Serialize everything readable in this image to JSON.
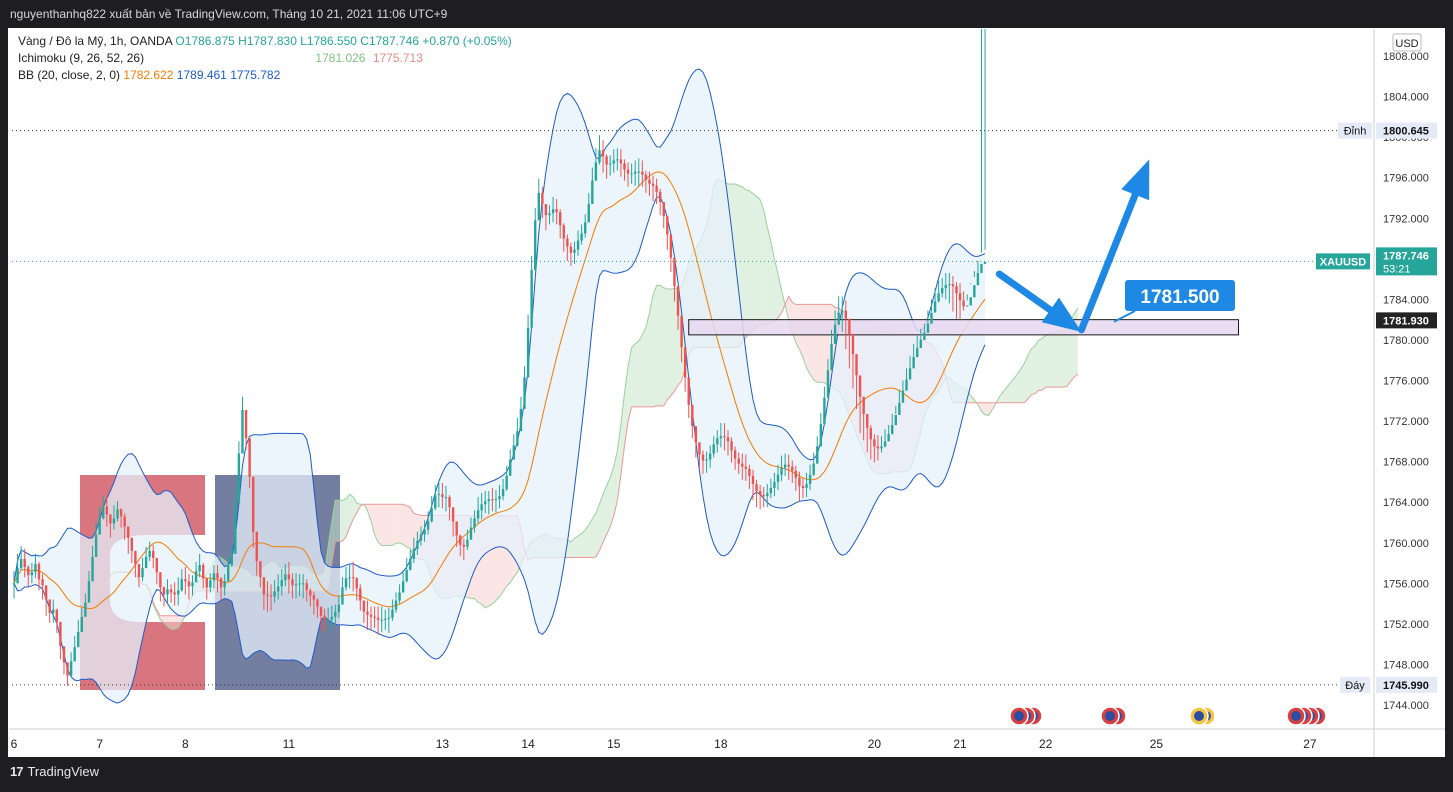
{
  "header": {
    "publisher_text": "nguyenthanhq822 xuất bản về TradingView.com, Tháng 10 21, 2021 11:06 UTC+9"
  },
  "footer": {
    "brand": "TradingView",
    "brand_mark": "17"
  },
  "legend": {
    "symbol": "Vàng / Đô la Mỹ, 1h, OANDA",
    "open": "O1786.875",
    "high": "H1787.830",
    "low": "L1786.550",
    "close": "C1787.746",
    "change": "+0.870 (+0.05%)",
    "ichimoku_label": "Ichimoku (9, 26, 52, 26)",
    "ichimoku_v1": "1781.026",
    "ichimoku_v2": "1775.713",
    "bb_label": "BB (20, close, 2, 0)",
    "bb_basis": "1782.622",
    "bb_upper": "1789.461",
    "bb_lower": "1775.782"
  },
  "currency": "USD",
  "colors": {
    "up": "#26a69a",
    "down": "#ef5350",
    "bb_basis": "#f57c00",
    "bb_band": "#1e5cc8",
    "bb_fill": "#e6f0fb",
    "kumo_green": "#c8e6c9",
    "kumo_red": "#f8d0cf",
    "arrow": "#1e88e5",
    "zone": "#e8d8f0",
    "logo_red": "#c0202e",
    "logo_navy": "#1f2f66"
  },
  "chart_data": {
    "type": "candlestick",
    "symbol": "XAUUSD",
    "timeframe": "1h",
    "ylim": [
      1742.0,
      1810.0
    ],
    "y_ticks": [
      1808,
      1804,
      1800,
      1796,
      1792,
      1788,
      1784,
      1780,
      1776,
      1772,
      1768,
      1764,
      1760,
      1756,
      1752,
      1748,
      1744
    ],
    "y_tick_labels": [
      "1808.000",
      "1804.000",
      "1800.000",
      "1796.000",
      "1792.000",
      "1788.000",
      "1784.000",
      "1780.000",
      "1776.000",
      "1772.000",
      "1768.000",
      "1764.000",
      "1760.000",
      "1756.000",
      "1752.000",
      "1748.000",
      "1744.000"
    ],
    "x_ticks": [
      {
        "label": "6",
        "bar": 0
      },
      {
        "label": "7",
        "bar": 24
      },
      {
        "label": "8",
        "bar": 48
      },
      {
        "label": "11",
        "bar": 77
      },
      {
        "label": "13",
        "bar": 120
      },
      {
        "label": "14",
        "bar": 144
      },
      {
        "label": "15",
        "bar": 168
      },
      {
        "label": "18",
        "bar": 198
      },
      {
        "label": "20",
        "bar": 241
      },
      {
        "label": "21",
        "bar": 265
      },
      {
        "label": "22",
        "bar": 289
      },
      {
        "label": "25",
        "bar": 320
      },
      {
        "label": "27",
        "bar": 363
      }
    ],
    "high_line": {
      "label": "Đỉnh",
      "value": 1800.645,
      "text": "1800.645"
    },
    "low_line": {
      "label": "Đáy",
      "value": 1745.99,
      "text": "1745.990"
    },
    "last_price": {
      "label": "XAUUSD",
      "value": 1787.746,
      "text": "1787.746",
      "countdown": "53:21"
    },
    "marker_price": {
      "value": 1781.93,
      "text": "1781.930"
    },
    "annotation": {
      "text": "1781.500",
      "value": 1781.5
    },
    "zone": {
      "top": 1782.0,
      "bottom": 1780.5,
      "from_bar": 189,
      "to_bar": 343
    },
    "arrows": [
      {
        "from": [
          276,
          1786.5
        ],
        "to": [
          299,
          1780.8
        ]
      },
      {
        "from": [
          299,
          1781.0
        ],
        "to": [
          318,
          1797.8
        ]
      }
    ],
    "closes": [
      1756,
      1757.5,
      1758.4,
      1757.6,
      1756.8,
      1757.1,
      1757.9,
      1756.4,
      1755.8,
      1754.4,
      1753.1,
      1753.4,
      1752.2,
      1749.8,
      1748.2,
      1746.9,
      1748.3,
      1749.7,
      1751.2,
      1752.7,
      1754.1,
      1756.2,
      1758.6,
      1760.8,
      1762.4,
      1763.6,
      1762.8,
      1761.9,
      1762.4,
      1763.3,
      1762.6,
      1761.6,
      1760.5,
      1759.2,
      1757.9,
      1756.6,
      1757.5,
      1758.6,
      1759.2,
      1758.5,
      1757.1,
      1755.6,
      1754.9,
      1755.4,
      1755.1,
      1754.9,
      1755.3,
      1756.4,
      1756.2,
      1755.7,
      1756.1,
      1757.2,
      1757.8,
      1756.5,
      1755.6,
      1756.3,
      1757,
      1756.5,
      1755.6,
      1756.2,
      1757.8,
      1758.9,
      1764,
      1768.8,
      1773.1,
      1770.3,
      1766.5,
      1761.1,
      1758.2,
      1756.6,
      1754.9,
      1754.8,
      1754.7,
      1755.2,
      1755.7,
      1756.3,
      1756.9,
      1756.4,
      1755.8,
      1755.9,
      1756,
      1756,
      1755.3,
      1754.8,
      1754.4,
      1753.7,
      1752.8,
      1752.4,
      1752.4,
      1752.7,
      1753.2,
      1753.9,
      1755.6,
      1756.5,
      1756.6,
      1756.5,
      1755.5,
      1754.3,
      1753.2,
      1752.9,
      1752.7,
      1752.6,
      1752.4,
      1752.4,
      1752.5,
      1752.6,
      1753.4,
      1754.3,
      1755.1,
      1756.2,
      1757.3,
      1758.4,
      1759.4,
      1760.2,
      1760.8,
      1761.3,
      1762.1,
      1763.4,
      1764.7,
      1764.8,
      1764.5,
      1764.5,
      1763.5,
      1762.1,
      1760.7,
      1759.8,
      1759.6,
      1760.3,
      1761.5,
      1762.4,
      1763.2,
      1763.8,
      1764.1,
      1764.3,
      1764.2,
      1764.3,
      1764.6,
      1765.3,
      1766.6,
      1768.2,
      1769.6,
      1771,
      1773.2,
      1776.3,
      1781.2,
      1786.9,
      1791.8,
      1794.5,
      1793.4,
      1792.3,
      1792.5,
      1792.9,
      1792.6,
      1791.3,
      1790,
      1789.2,
      1788.6,
      1788.9,
      1789.8,
      1790.5,
      1791.6,
      1793.4,
      1795.7,
      1797.5,
      1798.7,
      1798.1,
      1797.3,
      1797.4,
      1797.7,
      1797.8,
      1797.4,
      1796.8,
      1796.4,
      1796.4,
      1796.6,
      1796.6,
      1796.3,
      1795.8,
      1795.4,
      1795.2,
      1794.6,
      1793.6,
      1792.2,
      1790.4,
      1788.1,
      1785.3,
      1782.4,
      1779.3,
      1776.3,
      1773.6,
      1771.5,
      1769.9,
      1768.7,
      1768.1,
      1768.2,
      1768.8,
      1769.7,
      1770.3,
      1770.5,
      1770.4,
      1770,
      1769.1,
      1768.3,
      1767.8,
      1767.5,
      1767.3,
      1766.6,
      1765.8,
      1765.1,
      1764.7,
      1764.6,
      1764.9,
      1765.4,
      1766,
      1766.7,
      1767.4,
      1767.7,
      1767.5,
      1767.1,
      1766.4,
      1765.6,
      1765.4,
      1765.8,
      1766.7,
      1767.8,
      1769.5,
      1771.7,
      1774.3,
      1777,
      1779.6,
      1781.5,
      1782.7,
      1782.9,
      1782.1,
      1780.6,
      1778.6,
      1776.5,
      1774.4,
      1772.7,
      1771.3,
      1770.2,
      1769.5,
      1769.3,
      1769.5,
      1770,
      1770.7,
      1771.6,
      1772.6,
      1773.8,
      1775,
      1776.1,
      1777.2,
      1778.3,
      1779.2,
      1780,
      1780.7,
      1781.6,
      1782.7,
      1783.8,
      1784.6,
      1785.1,
      1785.4,
      1785.5,
      1785.3,
      1784.6,
      1783.9,
      1783.3,
      1783.4,
      1784.2,
      1785.4,
      1786.6,
      1787.5,
      1787.7
    ],
    "highs": [
      1757.2,
      1758.9,
      1759.7,
      1759.4,
      1757.8,
      1758,
      1758.9,
      1758.1,
      1756.9,
      1755.5,
      1754.1,
      1754.4,
      1753.5,
      1751.4,
      1749.4,
      1748.2,
      1749.2,
      1750.8,
      1752.4,
      1753.6,
      1755,
      1757.2,
      1759.7,
      1762.1,
      1763.6,
      1764.6,
      1764.5,
      1762.8,
      1763.7,
      1764.1,
      1763.4,
      1762.9,
      1761.3,
      1760.3,
      1758.7,
      1757.8,
      1758.5,
      1759.6,
      1760.1,
      1759.8,
      1758.1,
      1756.9,
      1755.7,
      1756.4,
      1755.9,
      1756.1,
      1756.6,
      1757.4,
      1757.6,
      1756.9,
      1756.8,
      1758.1,
      1758.9,
      1758,
      1756.4,
      1757,
      1757.8,
      1757.8,
      1756.6,
      1756.9,
      1758.6,
      1759.7,
      1765.4,
      1770,
      1774.4,
      1771.9,
      1767.8,
      1762.4,
      1759.4,
      1757.7,
      1755.9,
      1756.2,
      1755.9,
      1756.3,
      1756.9,
      1757.4,
      1757.9,
      1758.1,
      1757,
      1757,
      1756.9,
      1756.9,
      1756.4,
      1755.5,
      1755.2,
      1754.5,
      1753.6,
      1753.5,
      1753.6,
      1753.8,
      1753.9,
      1754.8,
      1756.6,
      1757.6,
      1757.8,
      1758.1,
      1756.6,
      1755.9,
      1754.1,
      1754.3,
      1753.7,
      1753.7,
      1753.7,
      1753.7,
      1753.4,
      1753.6,
      1754.4,
      1755.1,
      1755.9,
      1757.3,
      1758.5,
      1759.3,
      1760.5,
      1761.1,
      1761.6,
      1762.2,
      1763.1,
      1764.6,
      1765.7,
      1766.2,
      1765.9,
      1765.6,
      1764.7,
      1763.4,
      1761.6,
      1760.8,
      1760.4,
      1761.3,
      1762.5,
      1763.2,
      1764.5,
      1764.9,
      1765.1,
      1765.1,
      1765.4,
      1765.2,
      1765.7,
      1766.3,
      1767.6,
      1769.2,
      1770.7,
      1772.3,
      1774.4,
      1777.4,
      1782.5,
      1788.3,
      1793,
      1795.9,
      1795.1,
      1793.3,
      1793.3,
      1794.1,
      1793.9,
      1792.9,
      1791.5,
      1790.4,
      1789.6,
      1789.7,
      1790.8,
      1791.4,
      1792.4,
      1794.5,
      1797,
      1798.9,
      1800.2,
      1799.7,
      1798.3,
      1798.2,
      1798.8,
      1798.9,
      1798.8,
      1797.8,
      1797.5,
      1797.4,
      1797.7,
      1797.9,
      1797.7,
      1796.7,
      1796.6,
      1796.2,
      1795.9,
      1794.9,
      1793.5,
      1792.1,
      1789.5,
      1786.5,
      1783.8,
      1780.6,
      1777.5,
      1774.9,
      1772.8,
      1771.1,
      1769.7,
      1769.1,
      1769,
      1769.6,
      1770.5,
      1771.1,
      1771.8,
      1771.8,
      1771.1,
      1770.4,
      1769.5,
      1768.9,
      1768.8,
      1768.7,
      1767.7,
      1767.2,
      1766.2,
      1765.7,
      1765.5,
      1765.8,
      1766.3,
      1766.9,
      1767.7,
      1768.6,
      1768.8,
      1768.7,
      1768.1,
      1767.6,
      1767,
      1766.3,
      1766.9,
      1767.7,
      1768.9,
      1770.5,
      1772.8,
      1775.4,
      1778.1,
      1781,
      1782.9,
      1784.3,
      1784.3,
      1783.9,
      1781.7,
      1780,
      1778.2,
      1775.5,
      1774,
      1772.5,
      1771.6,
      1770.7,
      1770.6,
      1770.5,
      1771.2,
      1771.6,
      1772.7,
      1773.5,
      1775.1,
      1776,
      1777.2,
      1778.4,
      1779.6,
      1780.4,
      1781.1,
      1781.6,
      1782.9,
      1784,
      1785.1,
      1785.9,
      1786.1,
      1786.6,
      1786.6,
      1786.3,
      1785.7,
      1785.6,
      1784.8,
      1784.5,
      1785.6,
      1786.8,
      1787.8,
      1788.6,
      1788.9
    ],
    "lows": [
      1754.5,
      1756.3,
      1757.3,
      1756.6,
      1755.7,
      1756,
      1756.5,
      1755.3,
      1754.4,
      1752.8,
      1752.1,
      1752.1,
      1751.1,
      1748.5,
      1747,
      1745.9,
      1746.8,
      1748.6,
      1750.2,
      1751.5,
      1752.8,
      1754.8,
      1757.5,
      1759.7,
      1761.4,
      1762.3,
      1761.6,
      1760.5,
      1761.3,
      1762.1,
      1761.5,
      1760.3,
      1758.9,
      1758,
      1756.6,
      1755.6,
      1756.2,
      1757.5,
      1758.2,
      1757.5,
      1755.9,
      1754.2,
      1753.7,
      1753.9,
      1754.1,
      1753.8,
      1753.8,
      1755.2,
      1754.9,
      1754.4,
      1754.8,
      1756.1,
      1756.6,
      1755.5,
      1754.4,
      1755.1,
      1755.5,
      1755.1,
      1754.3,
      1754.8,
      1756.5,
      1757.6,
      1762.5,
      1767.5,
      1771.6,
      1769.2,
      1765.4,
      1759.5,
      1756.7,
      1755.6,
      1753.4,
      1753.2,
      1753.3,
      1754.1,
      1754.4,
      1754.8,
      1755.7,
      1755,
      1754.5,
      1754.5,
      1754.7,
      1754.5,
      1754.2,
      1753.7,
      1752.9,
      1752.6,
      1751.4,
      1751.2,
      1751,
      1751.5,
      1751.8,
      1752.6,
      1754.4,
      1755.3,
      1755.5,
      1755.2,
      1754.3,
      1753.3,
      1752.1,
      1751.4,
      1751.4,
      1751.6,
      1750.9,
      1751.2,
      1751.4,
      1751.1,
      1752.3,
      1753.1,
      1754,
      1755.1,
      1756.1,
      1757.3,
      1758,
      1758.8,
      1759.7,
      1760.1,
      1760.8,
      1762,
      1763.2,
      1763.5,
      1763.4,
      1763.1,
      1762.2,
      1760.6,
      1759.6,
      1758.7,
      1758.3,
      1759.3,
      1760.3,
      1761,
      1761.9,
      1762.3,
      1762.9,
      1762.8,
      1763.1,
      1763,
      1763.4,
      1764.2,
      1765.1,
      1766.8,
      1768.4,
      1769.5,
      1771.9,
      1774.9,
      1779.6,
      1785.6,
      1790.7,
      1793,
      1792,
      1790.8,
      1791.4,
      1791.6,
      1791.4,
      1790,
      1788.7,
      1787.8,
      1787.3,
      1787.5,
      1788.3,
      1789.4,
      1790.1,
      1792,
      1794.6,
      1796.4,
      1797.3,
      1796.5,
      1795.9,
      1796.2,
      1796.5,
      1796.7,
      1796.1,
      1795.7,
      1795.1,
      1795.4,
      1795.2,
      1795.1,
      1795.1,
      1794.5,
      1794.2,
      1793.7,
      1793.4,
      1792.3,
      1791,
      1788.9,
      1786.7,
      1783.8,
      1781,
      1777.8,
      1774.9,
      1772.3,
      1770.3,
      1768.4,
      1767.2,
      1766.8,
      1766.9,
      1767.4,
      1768.4,
      1768.9,
      1769.4,
      1769.1,
      1768.6,
      1767.9,
      1767.2,
      1766.8,
      1766.2,
      1766.1,
      1765.3,
      1764.2,
      1763.5,
      1763.3,
      1763.5,
      1763.5,
      1764.4,
      1764.6,
      1765.2,
      1766.1,
      1766.6,
      1766.2,
      1765.9,
      1765.1,
      1764.1,
      1764.4,
      1764.5,
      1765.2,
      1766.6,
      1768,
      1770.4,
      1772.9,
      1775.5,
      1778.4,
      1780.3,
      1781.6,
      1780.8,
      1779.1,
      1777.2,
      1775.2,
      1773.2,
      1770.8,
      1770.1,
      1768.9,
      1768.2,
      1767.9,
      1768.1,
      1768.9,
      1769.4,
      1770.3,
      1771.3,
      1772.7,
      1773.4,
      1774.5,
      1775.8,
      1776.8,
      1777.6,
      1778.8,
      1779.5,
      1780.6,
      1781.5,
      1782.8,
      1783.4,
      1783.7,
      1784.2,
      1784,
      1783.6,
      1782.8,
      1782.1,
      1782,
      1782.9,
      1783.9,
      1785.5,
      1786.2,
      1786.6
    ],
    "notes": "Gold (XAUUSD) 1h candles with Ichimoku cloud and Bollinger Bands overlay; values estimated from the price axis."
  }
}
